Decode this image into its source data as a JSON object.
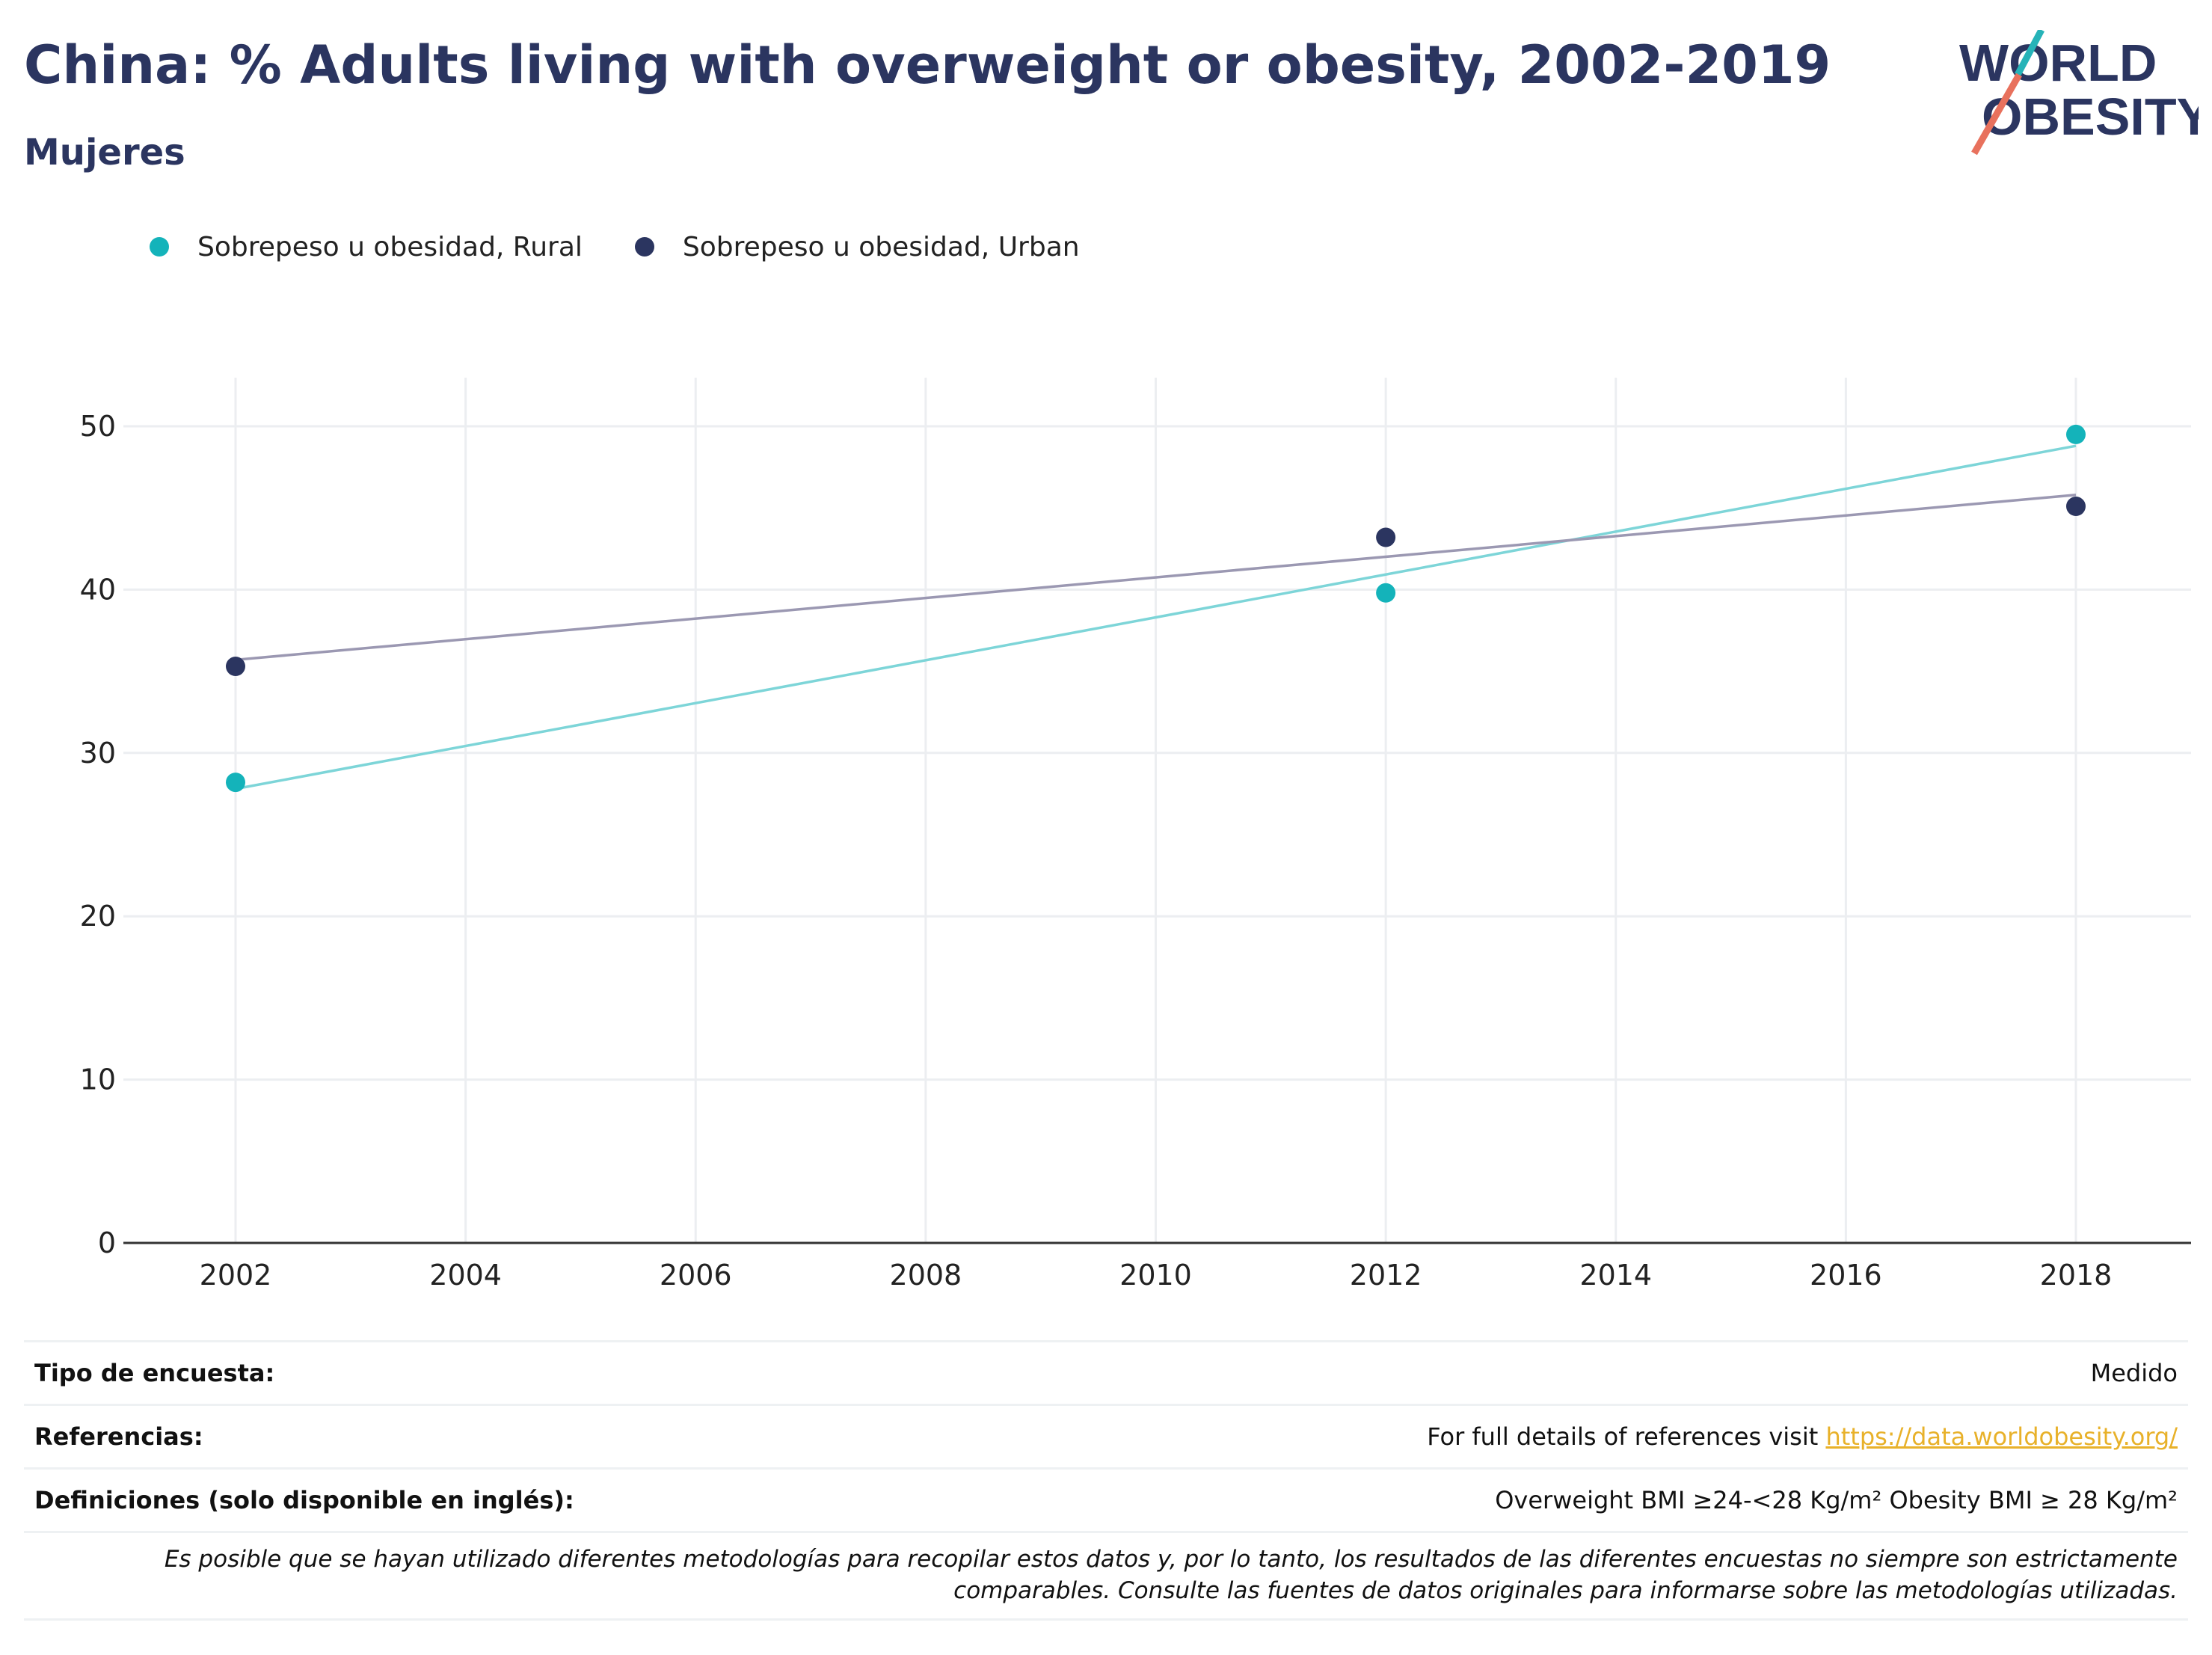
{
  "header": {
    "title": "China: % Adults living with overweight or obesity, 2002-2019",
    "subtitle": "Mujeres"
  },
  "logo": {
    "line1": "WORLD",
    "line2": "OBESITY",
    "accent_teal": "#26b3b8",
    "accent_coral": "#e8715d",
    "text_color": "#2b3560"
  },
  "legend": {
    "items": [
      {
        "label": "Sobrepeso u obesidad, Rural",
        "color": "#14b3ba"
      },
      {
        "label": "Sobrepeso u obesidad, Urban",
        "color": "#2b3560"
      }
    ]
  },
  "chart_data": {
    "type": "scatter",
    "x_ticks": [
      "2002",
      "2004",
      "2006",
      "2008",
      "2010",
      "2012",
      "2014",
      "2016",
      "2018"
    ],
    "y_ticks": [
      "0",
      "10",
      "20",
      "30",
      "40",
      "50"
    ],
    "xlim": [
      2002,
      2018
    ],
    "ylim": [
      0,
      50
    ],
    "grid": true,
    "legend_position": "top-left",
    "series": [
      {
        "name": "Sobrepeso u obesidad, Rural",
        "color": "#14b3ba",
        "trend_color": "#7dd5d8",
        "x": [
          2002,
          2012,
          2018
        ],
        "y": [
          28.2,
          39.8,
          49.5
        ],
        "trendline": {
          "x": [
            2002,
            2018
          ],
          "y": [
            27.8,
            48.8
          ]
        }
      },
      {
        "name": "Sobrepeso u obesidad, Urban",
        "color": "#2b3560",
        "trend_color": "#9b98b2",
        "x": [
          2002,
          2012,
          2018
        ],
        "y": [
          35.3,
          43.2,
          45.1
        ],
        "trendline": {
          "x": [
            2002,
            2018
          ],
          "y": [
            35.7,
            45.8
          ]
        }
      }
    ]
  },
  "info": {
    "survey_type_label": "Tipo de encuesta:",
    "survey_type_value": "Medido",
    "references_label": "Referencias:",
    "references_text": "For full details of references visit ",
    "references_link": "https://data.worldobesity.org/",
    "definitions_label": "Definiciones (solo disponible en inglés):",
    "definitions_value": "Overweight BMI ≥24-<28 Kg/m² Obesity BMI ≥ 28 Kg/m²",
    "disclaimer_line1": "Es posible que se hayan utilizado diferentes metodologías para recopilar estos datos y, por lo tanto, los resultados de las diferentes encuestas no siempre son estrictamente",
    "disclaimer_line2": "comparables. Consulte las fuentes de datos originales para informarse sobre las metodologías utilizadas."
  }
}
